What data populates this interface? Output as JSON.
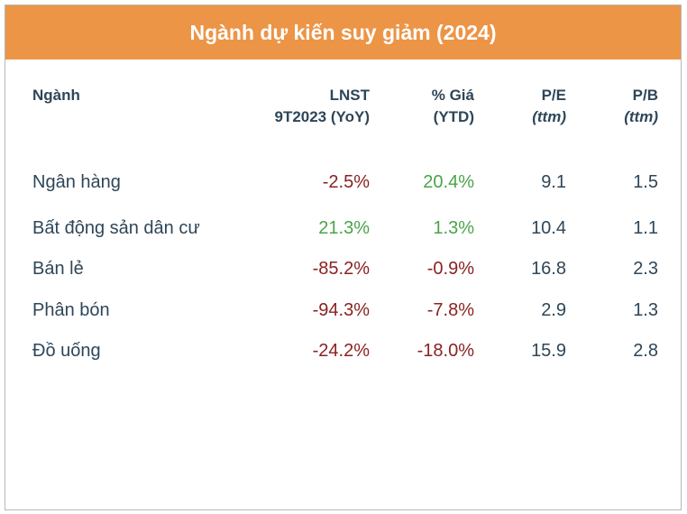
{
  "title": "Ngành dự kiến suy giảm (2024)",
  "headers": {
    "sector": "Ngành",
    "profit": [
      "LNST",
      "9T2023 (YoY)"
    ],
    "price": [
      "% Giá",
      "(YTD)"
    ],
    "pe": [
      "P/E",
      "(ttm)"
    ],
    "pb": [
      "P/B",
      "(ttm)"
    ]
  },
  "colors": {
    "banner": "#ec9547",
    "negative": "#8b2222",
    "positive": "#4aa44a",
    "text": "#2e4658"
  },
  "rows": [
    {
      "sector": "Ngân hàng",
      "profit": "-2.5%",
      "price": "20.4%",
      "pe": "9.1",
      "pb": "1.5"
    },
    {
      "sector": "Bất động sản dân cư",
      "profit": "21.3%",
      "price": "1.3%",
      "pe": "10.4",
      "pb": "1.1"
    },
    {
      "sector": "Bán lẻ",
      "profit": "-85.2%",
      "price": "-0.9%",
      "pe": "16.8",
      "pb": "2.3"
    },
    {
      "sector": "Phân bón",
      "profit": "-94.3%",
      "price": "-7.8%",
      "pe": "2.9",
      "pb": "1.3"
    },
    {
      "sector": "Đồ uống",
      "profit": "-24.2%",
      "price": "-18.0%",
      "pe": "15.9",
      "pb": "2.8"
    }
  ]
}
